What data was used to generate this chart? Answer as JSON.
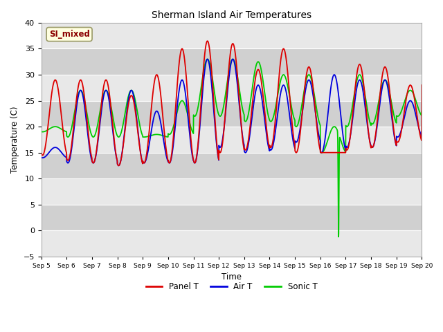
{
  "title": "Sherman Island Air Temperatures",
  "xlabel": "Time",
  "ylabel": "Temperature (C)",
  "ylim": [
    -5,
    40
  ],
  "xlim": [
    0,
    15
  ],
  "background_color": "#ffffff",
  "plot_bg_light": "#e8e8e8",
  "plot_bg_dark": "#d0d0d0",
  "panel_t_color": "#dd0000",
  "air_t_color": "#0000dd",
  "sonic_t_color": "#00cc00",
  "annotation_text": "SI_mixed",
  "annotation_color": "#8b0000",
  "annotation_bg": "#ffffe0",
  "x_tick_labels": [
    "Sep 5",
    "Sep 6",
    "Sep 7",
    "Sep 8",
    "Sep 9",
    "Sep 10",
    "Sep 11",
    "Sep 12",
    "Sep 13",
    "Sep 14",
    "Sep 15",
    "Sep 16",
    "Sep 17",
    "Sep 18",
    "Sep 19",
    "Sep 20"
  ],
  "legend_labels": [
    "Panel T",
    "Air T",
    "Sonic T"
  ],
  "yticks": [
    -5,
    0,
    5,
    10,
    15,
    20,
    25,
    30,
    35,
    40
  ]
}
